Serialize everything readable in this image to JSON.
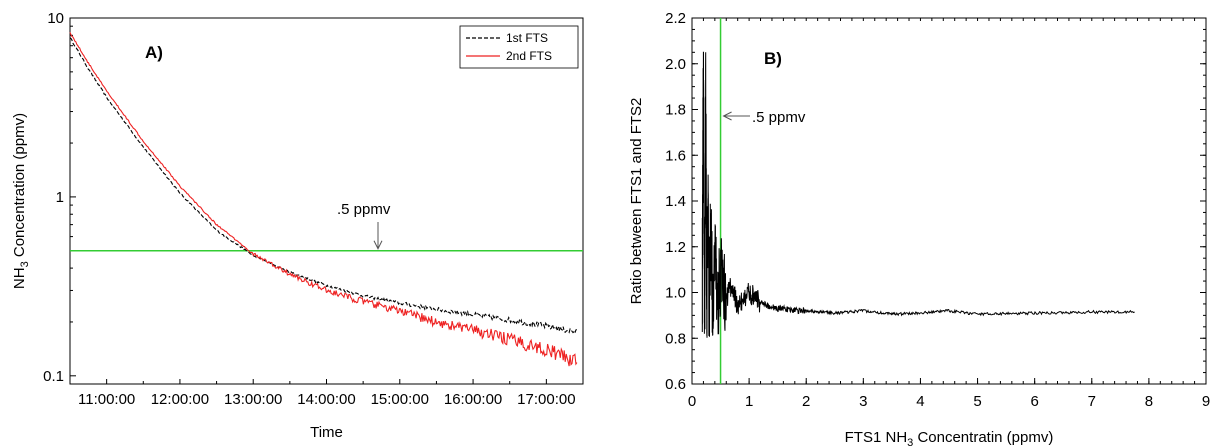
{
  "chart_data": [
    {
      "type": "line",
      "panel_label": "A)",
      "xlabel": "Time",
      "ylabel_main": "NH",
      "ylabel_sub": "3",
      "ylabel_rest": " Concentration (ppmv)",
      "yscale": "log",
      "ylim": [
        0.09,
        10
      ],
      "xlim": [
        "10:30:00",
        "17:30:00"
      ],
      "x_ticks": [
        "11:00:00",
        "12:00:00",
        "13:00:00",
        "14:00:00",
        "15:00:00",
        "16:00:00",
        "17:00:00"
      ],
      "y_ticks": [
        "0.1",
        "1",
        "10"
      ],
      "threshold": {
        "value": 0.5,
        "label": ".5 ppmv",
        "color": "#33cc33"
      },
      "legend": {
        "position": "top-right"
      },
      "series": [
        {
          "name": "1st FTS",
          "color": "#000000",
          "dash": "dashed",
          "x": [
            "10:30:00",
            "10:45:00",
            "11:00:00",
            "11:30:00",
            "12:00:00",
            "12:30:00",
            "13:00:00",
            "13:30:00",
            "14:00:00",
            "14:30:00",
            "15:00:00",
            "15:30:00",
            "16:00:00",
            "16:30:00",
            "17:00:00",
            "17:25:00"
          ],
          "y": [
            7.8,
            5.2,
            3.6,
            1.9,
            1.05,
            0.65,
            0.47,
            0.38,
            0.32,
            0.28,
            0.255,
            0.235,
            0.22,
            0.205,
            0.19,
            0.175
          ]
        },
        {
          "name": "2nd FTS",
          "color": "#ee2222",
          "dash": "solid",
          "x": [
            "10:30:00",
            "10:45:00",
            "11:00:00",
            "11:30:00",
            "12:00:00",
            "12:30:00",
            "13:00:00",
            "13:30:00",
            "14:00:00",
            "14:30:00",
            "15:00:00",
            "15:30:00",
            "16:00:00",
            "16:30:00",
            "17:00:00",
            "17:25:00"
          ],
          "y": [
            8.3,
            5.6,
            3.9,
            2.05,
            1.15,
            0.7,
            0.48,
            0.37,
            0.3,
            0.26,
            0.23,
            0.2,
            0.18,
            0.16,
            0.14,
            0.12
          ]
        }
      ]
    },
    {
      "type": "line",
      "panel_label": "B)",
      "xlabel_main": "FTS1 NH",
      "xlabel_sub": "3",
      "xlabel_rest": " Concentratin (ppmv)",
      "ylabel": "Ratio between FTS1 and FTS2",
      "xlim": [
        0,
        9
      ],
      "ylim": [
        0.6,
        2.2
      ],
      "x_ticks": [
        "0",
        "1",
        "2",
        "3",
        "4",
        "5",
        "6",
        "7",
        "8",
        "9"
      ],
      "y_ticks": [
        "0.6",
        "0.8",
        "1.0",
        "1.2",
        "1.4",
        "1.6",
        "1.8",
        "2.0",
        "2.2"
      ],
      "threshold": {
        "value": 0.5,
        "label": ".5 ppmv",
        "color": "#33cc33"
      },
      "series": [
        {
          "color": "#000000",
          "x": [
            0.18,
            0.2,
            0.22,
            0.24,
            0.26,
            0.28,
            0.3,
            0.33,
            0.36,
            0.4,
            0.45,
            0.5,
            0.6,
            0.7,
            0.8,
            1.0,
            1.2,
            1.5,
            1.8,
            2.0,
            2.5,
            3.0,
            3.5,
            4.0,
            4.5,
            5.0,
            6.0,
            7.0,
            7.75
          ],
          "y": [
            1.05,
            2.05,
            0.82,
            1.86,
            0.9,
            1.5,
            0.85,
            1.3,
            0.88,
            1.2,
            0.95,
            1.08,
            0.97,
            1.04,
            0.93,
            1.0,
            0.95,
            0.93,
            0.92,
            0.92,
            0.91,
            0.92,
            0.905,
            0.91,
            0.92,
            0.905,
            0.91,
            0.915,
            0.915
          ]
        }
      ]
    }
  ]
}
